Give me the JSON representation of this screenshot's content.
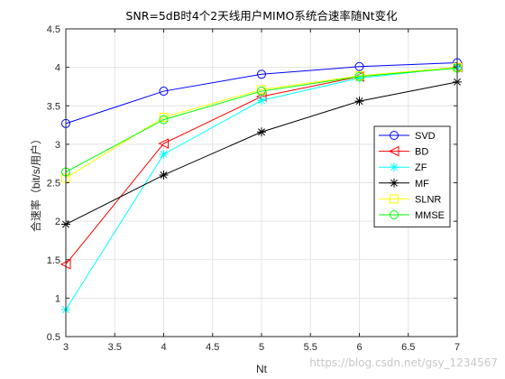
{
  "chart_data": {
    "type": "line",
    "title": "SNR=5dB时4个2天线用户MIMO系统合速率随Nt变化",
    "xlabel": "Nt",
    "ylabel": "合速率（bit/s/用户）",
    "x": [
      3,
      4,
      5,
      6,
      7
    ],
    "xlim": [
      3,
      7
    ],
    "ylim": [
      0.5,
      4.5
    ],
    "xticks": [
      "3",
      "3.5",
      "4",
      "4.5",
      "5",
      "5.5",
      "6",
      "6.5",
      "7"
    ],
    "yticks": [
      "0.5",
      "1",
      "1.5",
      "2",
      "2.5",
      "3",
      "3.5",
      "4",
      "4.5"
    ],
    "grid": true,
    "legend_position": "right",
    "series": [
      {
        "name": "SVD",
        "values": [
          3.27,
          3.69,
          3.91,
          4.01,
          4.06
        ],
        "color": "#0000ff",
        "marker": "circle"
      },
      {
        "name": "BD",
        "values": [
          1.44,
          3.01,
          3.62,
          3.88,
          4.0
        ],
        "color": "#ff0000",
        "marker": "triangle-left"
      },
      {
        "name": "ZF",
        "values": [
          0.85,
          2.87,
          3.57,
          3.86,
          4.0
        ],
        "color": "#00ffff",
        "marker": "star"
      },
      {
        "name": "MF",
        "values": [
          1.96,
          2.6,
          3.16,
          3.56,
          3.81
        ],
        "color": "#000000",
        "marker": "asterisk"
      },
      {
        "name": "SLNR",
        "values": [
          2.56,
          3.35,
          3.71,
          3.89,
          4.0
        ],
        "color": "#ffff00",
        "marker": "square"
      },
      {
        "name": "MMSE",
        "values": [
          2.64,
          3.32,
          3.69,
          3.88,
          3.99
        ],
        "color": "#00ff00",
        "marker": "circle"
      }
    ]
  },
  "watermark": "https://blog.csdn.net/gsy_1234567"
}
